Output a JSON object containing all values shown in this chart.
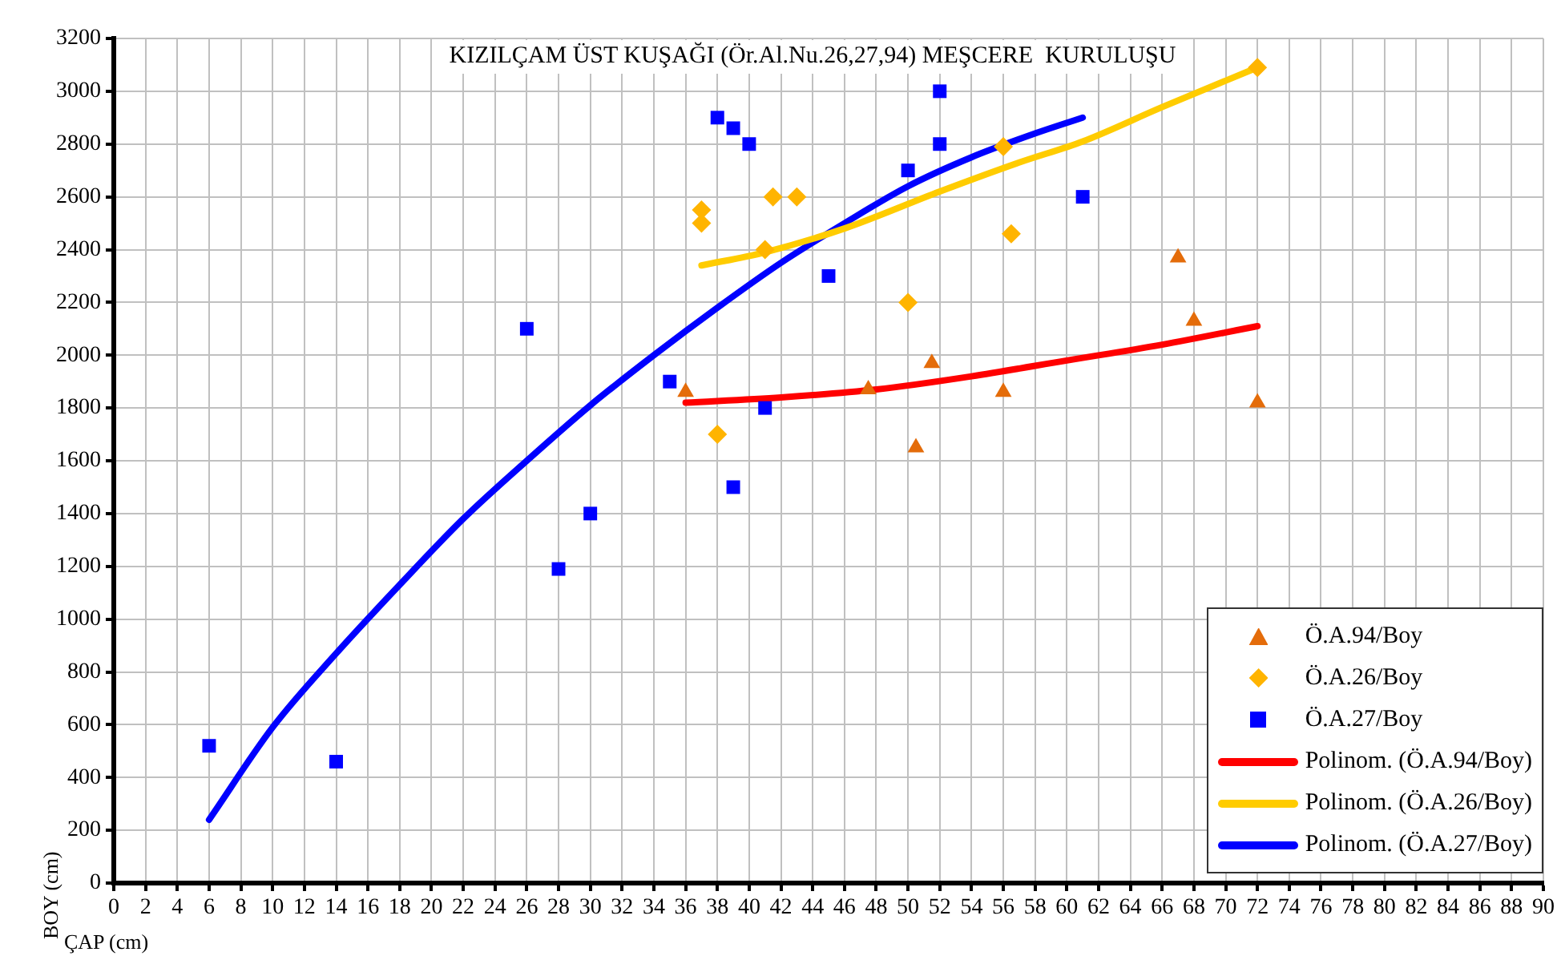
{
  "chart_data": {
    "type": "scatter",
    "title": "KIZILÇAM ÜST KUŞAĞI (Ör.Al.Nu.26,27,94) MEŞCERE  KURULUŞU",
    "xlabel": "ÇAP (cm)",
    "ylabel": "BOY (cm)",
    "xlim": [
      0,
      90
    ],
    "xticks": [
      0,
      2,
      4,
      6,
      8,
      10,
      12,
      14,
      16,
      18,
      20,
      22,
      24,
      26,
      28,
      30,
      32,
      34,
      36,
      38,
      40,
      42,
      44,
      46,
      48,
      50,
      52,
      54,
      56,
      58,
      60,
      62,
      64,
      66,
      68,
      70,
      72,
      74,
      76,
      78,
      80,
      82,
      84,
      86,
      88,
      90
    ],
    "ylim": [
      0,
      3200
    ],
    "yticks": [
      0,
      200,
      400,
      600,
      800,
      1000,
      1200,
      1400,
      1600,
      1800,
      2000,
      2200,
      2400,
      2600,
      2800,
      3000,
      3200
    ],
    "grid": true,
    "legend": "bottom right",
    "series": [
      {
        "name": "Ö.A.94/Boy",
        "type": "scatter",
        "marker": "triangle",
        "color": "#e46c0a",
        "x": [
          36,
          47.5,
          51.5,
          56,
          50.5,
          67,
          68,
          72
        ],
        "values": [
          1860,
          1870,
          1970,
          1860,
          1650,
          2370,
          2130,
          1820
        ]
      },
      {
        "name": "Ö.A.26/Boy",
        "type": "scatter",
        "marker": "diamond",
        "color": "#ffb400",
        "x": [
          37,
          37,
          41.5,
          43,
          41,
          56.5,
          50,
          38,
          56,
          72
        ],
        "values": [
          2550,
          2500,
          2600,
          2600,
          2400,
          2460,
          2200,
          1700,
          2790,
          3090
        ]
      },
      {
        "name": "Ö.A.27/Boy",
        "type": "scatter",
        "marker": "square",
        "color": "#0000ff",
        "x": [
          6,
          14,
          28,
          30,
          39,
          26,
          38,
          39,
          40,
          35,
          41,
          52,
          52,
          50,
          45,
          61
        ],
        "values": [
          520,
          460,
          1190,
          1400,
          1500,
          2100,
          2900,
          2860,
          2800,
          1900,
          1800,
          3000,
          2800,
          2700,
          2300,
          2600
        ]
      },
      {
        "name": "Polinom. (Ö.A.94/Boy)",
        "type": "line",
        "marker": "none",
        "color": "#ff0000",
        "x": [
          36,
          42,
          48,
          54,
          60,
          66,
          72
        ],
        "values": [
          1820,
          1840,
          1870,
          1920,
          1980,
          2040,
          2110
        ]
      },
      {
        "name": "Polinom. (Ö.A.26/Boy)",
        "type": "line",
        "marker": "none",
        "color": "#ffcc00",
        "x": [
          37,
          41,
          46,
          52,
          57,
          61,
          66,
          72
        ],
        "values": [
          2340,
          2390,
          2480,
          2620,
          2730,
          2810,
          2940,
          3090
        ]
      },
      {
        "name": "Polinom. (Ö.A.27/Boy)",
        "type": "line",
        "marker": "none",
        "color": "#0000ff",
        "x": [
          6,
          10,
          14,
          18,
          22,
          26,
          30,
          34,
          38,
          42,
          46,
          50,
          54,
          58,
          61
        ],
        "values": [
          240,
          590,
          870,
          1130,
          1380,
          1600,
          1810,
          2000,
          2180,
          2350,
          2500,
          2640,
          2750,
          2840,
          2900
        ]
      }
    ]
  }
}
